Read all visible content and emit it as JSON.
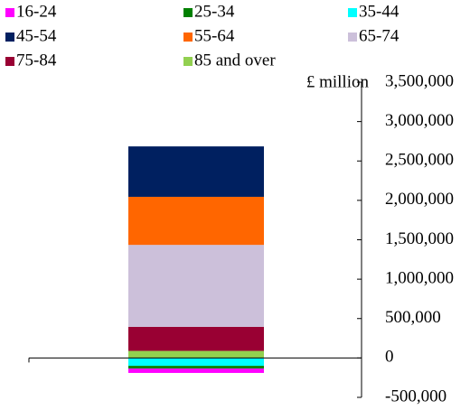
{
  "chart_data": {
    "type": "stacked_bar",
    "y_axis_label": "£ million",
    "series": [
      {
        "name": "16-24",
        "color": "#ff00ff",
        "values": [
          -55000
        ]
      },
      {
        "name": "25-34",
        "color": "#008000",
        "values": [
          -35000
        ]
      },
      {
        "name": "35-44",
        "color": "#00ffff",
        "values": [
          -100000
        ]
      },
      {
        "name": "45-54",
        "color": "#002060",
        "values": [
          640000
        ]
      },
      {
        "name": "55-64",
        "color": "#ff6600",
        "values": [
          610000
        ]
      },
      {
        "name": "65-74",
        "color": "#ccc0da",
        "values": [
          1040000
        ]
      },
      {
        "name": "75-84",
        "color": "#990033",
        "values": [
          305000
        ]
      },
      {
        "name": "85 and over",
        "color": "#92d050",
        "values": [
          90000
        ]
      }
    ],
    "ylim": [
      -500000,
      3500000
    ],
    "yticks": [
      {
        "value": -500000,
        "label": "-500,000"
      },
      0,
      {
        "value": 500000,
        "label": "500,000"
      },
      {
        "value": 1000000,
        "label": "1,000,000"
      },
      {
        "value": 1500000,
        "label": "1,500,000"
      },
      {
        "value": 2000000,
        "label": "2,000,000"
      },
      {
        "value": 2500000,
        "label": "2,500,000"
      },
      {
        "value": 3000000,
        "label": "3,000,000"
      },
      {
        "value": 3500000,
        "label": "3,500,000"
      }
    ],
    "legend_position": "top"
  }
}
